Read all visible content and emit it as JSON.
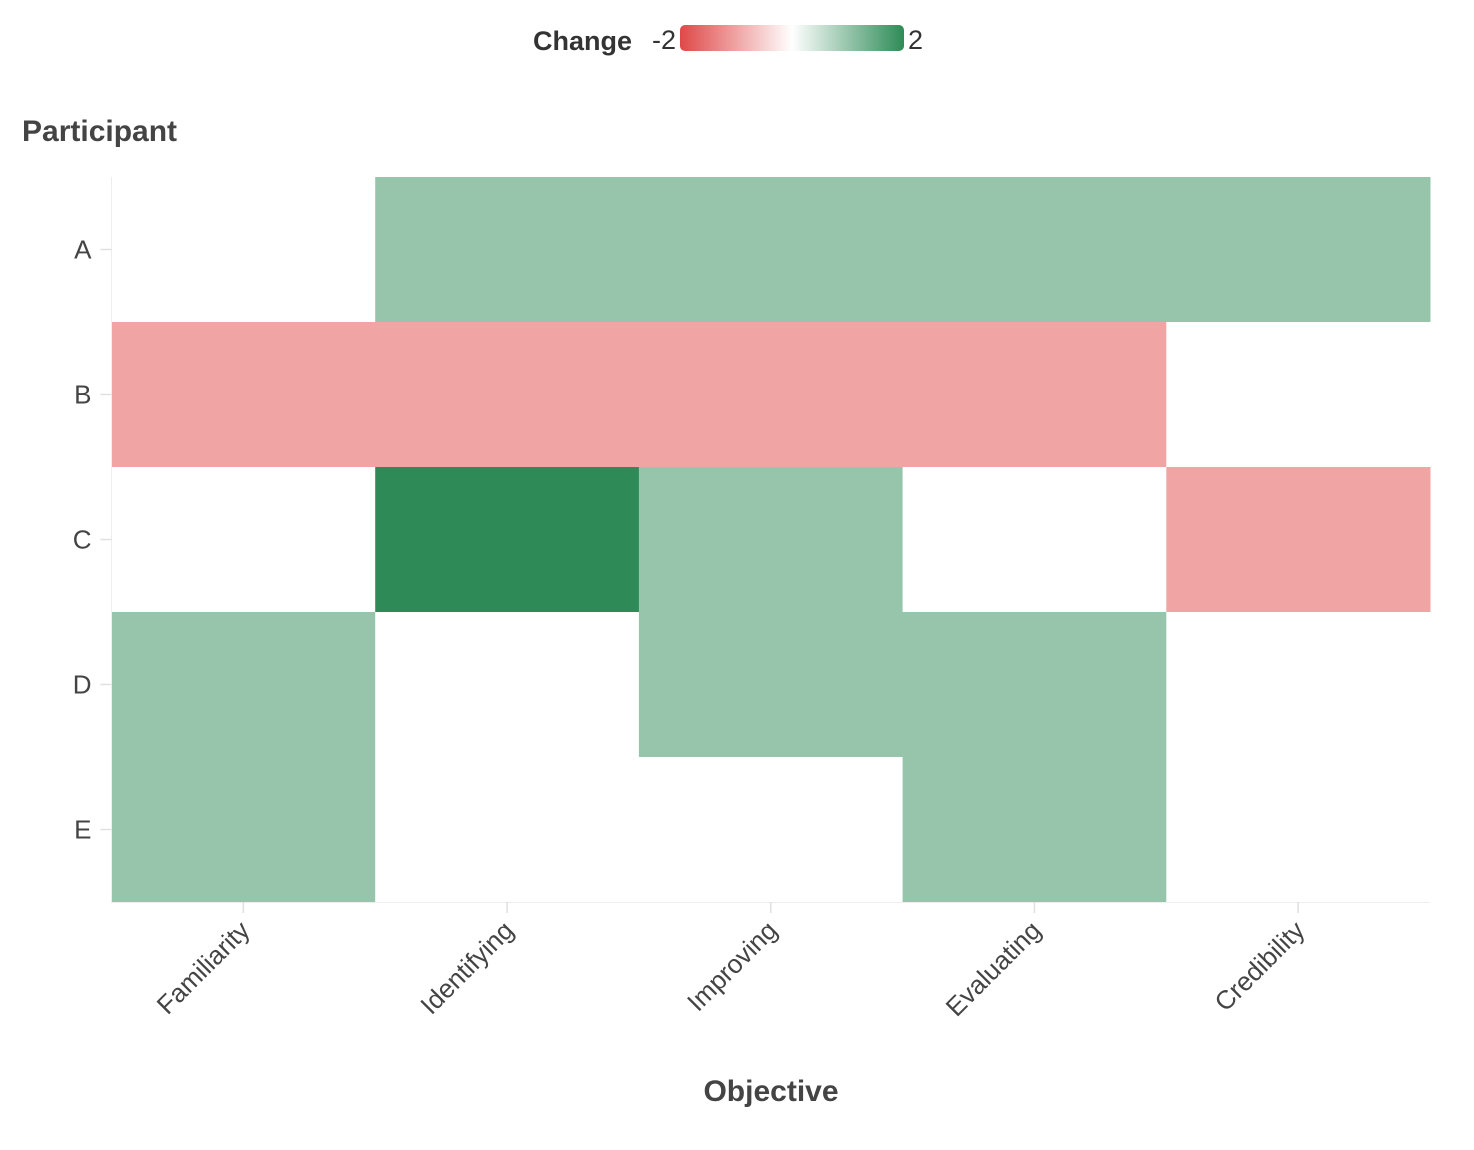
{
  "legend": {
    "title": "Change",
    "min_label": "-2",
    "max_label": "2",
    "min": -2,
    "max": 2,
    "colors": {
      "low": "#e04848",
      "mid": "#ffffff",
      "high": "#2e8b57"
    }
  },
  "chart_data": {
    "type": "heatmap",
    "xlabel": "Objective",
    "ylabel": "Participant",
    "x_categories": [
      "Familiarity",
      "Identifying",
      "Improving",
      "Evaluating",
      "Credibility"
    ],
    "y_categories": [
      "A",
      "B",
      "C",
      "D",
      "E"
    ],
    "values": [
      [
        0,
        1,
        1,
        1,
        1
      ],
      [
        -1,
        -1,
        -1,
        -1,
        0
      ],
      [
        0,
        2,
        1,
        0,
        -1
      ],
      [
        1,
        0,
        1,
        1,
        0
      ],
      [
        1,
        0,
        0,
        1,
        0
      ]
    ],
    "color_range": [
      -2,
      2
    ],
    "grid": false,
    "legend_position": "top"
  }
}
